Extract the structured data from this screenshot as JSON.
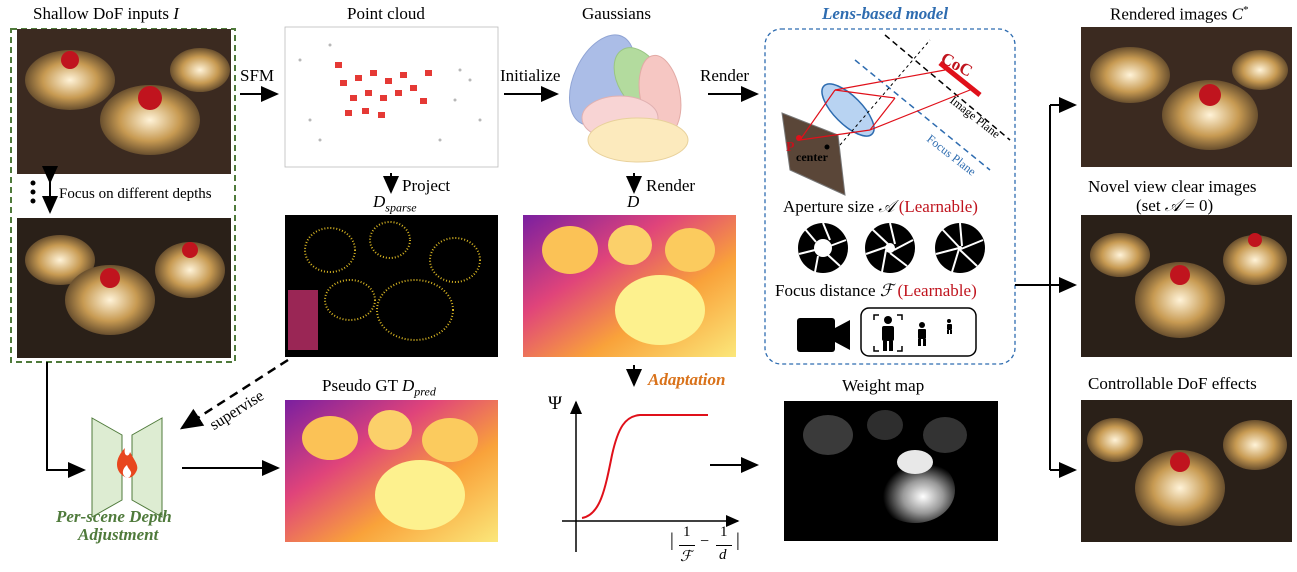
{
  "titles": {
    "inputs": "Shallow DoF inputs",
    "inputs_var": "I",
    "point_cloud": "Point cloud",
    "gaussians": "Gaussians",
    "lens_model": "Lens-based model",
    "rendered": "Rendered images",
    "rendered_var": "C",
    "rendered_sup": "*",
    "novel_view": "Novel view clear images",
    "set_aperture": "(set",
    "set_aperture_var": "𝒜",
    "set_aperture_eq": " = 0)",
    "controllable": "Controllable DoF effects",
    "weight_map": "Weight map",
    "pseudo_gt": "Pseudo GT",
    "pseudo_gt_var": "D",
    "pseudo_gt_sub": "pred",
    "depth_adjust_line1": "Per-scene Depth",
    "depth_adjust_line2": "Adjustment"
  },
  "arrows": {
    "sfm": "SFM",
    "initialize": "Initialize",
    "render1": "Render",
    "project": "Project",
    "render2": "Render",
    "adaptation": "Adaptation",
    "supervise": "supervise",
    "focus_depths": "Focus on different depths"
  },
  "vars": {
    "d_sparse": "D",
    "d_sparse_sub": "sparse",
    "d": "D",
    "psi": "Ψ"
  },
  "lens": {
    "coc": "CoC",
    "image_plane": "Image Plane",
    "focus_plane": "Focus Plane",
    "p_label": "P",
    "center_label": "center",
    "aperture_label": "Aperture size",
    "aperture_var": "𝒜",
    "focus_label": "Focus distance",
    "focus_var": "ℱ",
    "learnable": "(Learnable)"
  },
  "formula": {
    "bar_left": "|",
    "one_a": "1",
    "den_a": "ℱ",
    "minus": "−",
    "one_b": "1",
    "den_b": "d",
    "bar_right": "|"
  },
  "colors": {
    "green": "#4f7a3b",
    "blue": "#2e6cb0",
    "red": "#c0141e",
    "orange": "#d9721a"
  }
}
